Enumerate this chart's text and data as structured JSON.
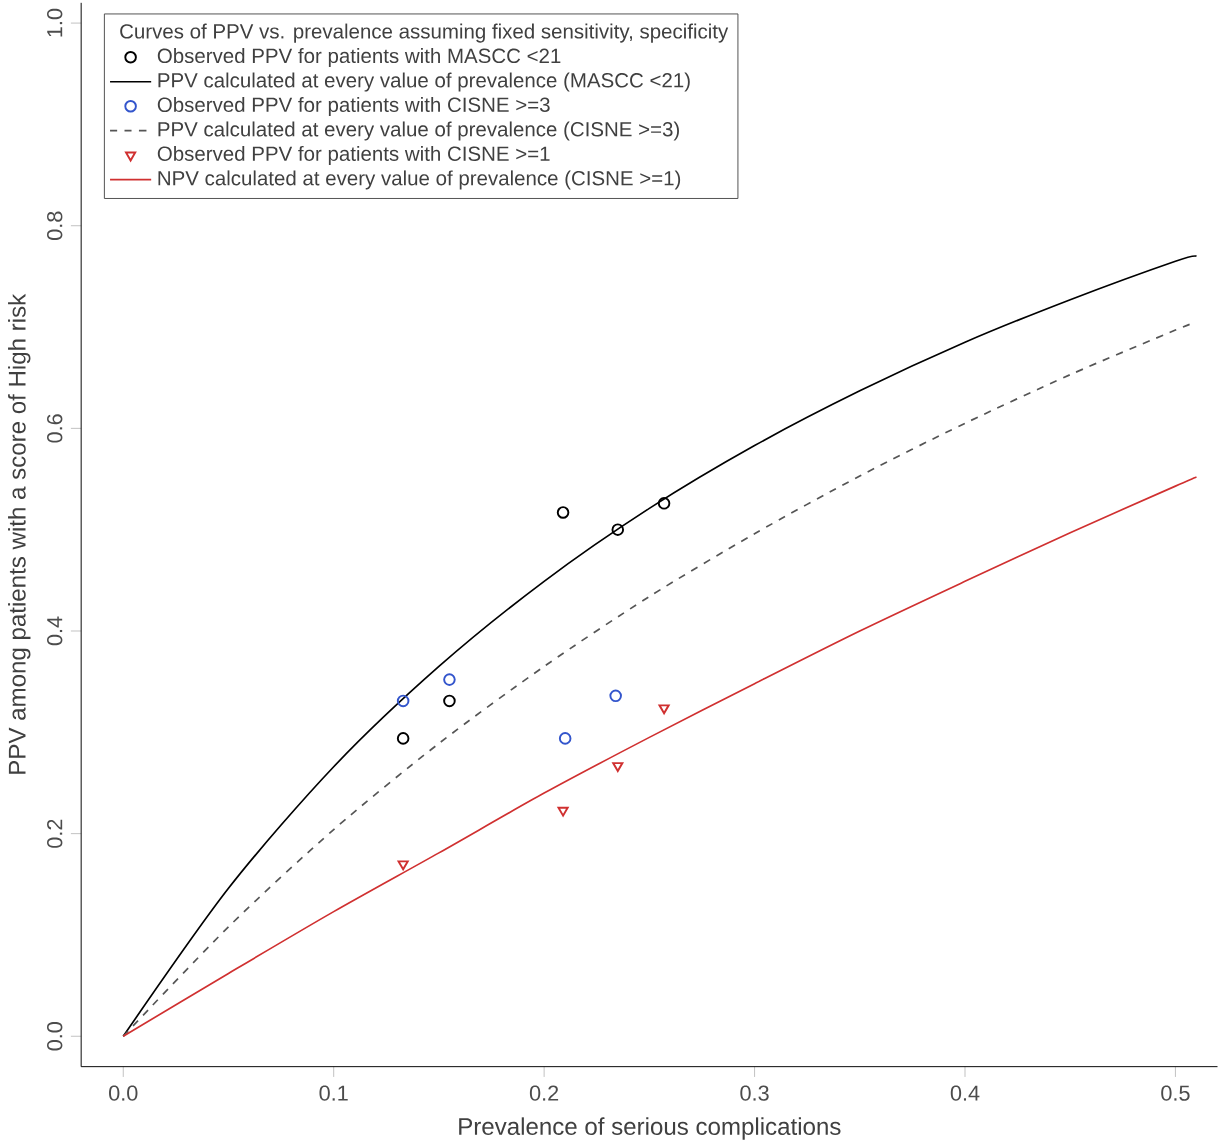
{
  "chart_data": {
    "type": "scatter",
    "xlabel": "Prevalence of serious complications",
    "ylabel": "PPV among patients with a score of High risk",
    "legend_title": "Curves of PPV vs. prevalence assuming fixed sensitivity, specificity",
    "legend": "top left",
    "xlim": [
      -0.02,
      0.52
    ],
    "ylim": [
      -0.03,
      1.02
    ],
    "xticks": [
      {
        "value": 0,
        "label": "0.0"
      },
      0.1,
      0.2,
      0.3,
      0.4,
      0.5
    ],
    "yticks": [
      {
        "value": 0,
        "label": "0.0"
      },
      0.2,
      0.4,
      0.6,
      0.8,
      {
        "value": 1,
        "label": "1.0"
      }
    ],
    "series": [
      {
        "name": "Observed PPV for patients with MASCC <21",
        "color": "#000000",
        "marker": "circle",
        "x": [
          0.133,
          0.155,
          0.209,
          0.235,
          0.257
        ],
        "values": [
          0.294,
          0.331,
          0.517,
          0.5,
          0.526
        ]
      },
      {
        "name": "PPV calculated at every value of prevalence (MASCC <21)",
        "type": "line",
        "color": "#000000",
        "line_style": "solid",
        "x": [
          0,
          0.05,
          0.1,
          0.15,
          0.2,
          0.25,
          0.3,
          0.35,
          0.4,
          0.45,
          0.5,
          0.51
        ],
        "values": [
          0,
          0.146,
          0.266,
          0.365,
          0.449,
          0.521,
          0.583,
          0.637,
          0.685,
          0.727,
          0.765,
          0.77
        ]
      },
      {
        "name": "Observed PPV for patients with CISNE >=3",
        "color": "#3355cc",
        "marker": "circle",
        "x": [
          0.133,
          0.155,
          0.21,
          0.234
        ],
        "values": [
          0.331,
          0.352,
          0.294,
          0.336
        ]
      },
      {
        "name": "PPV calculated at every value of prevalence (CISNE >=3)",
        "type": "line",
        "color": "#555555",
        "line_style": "dashed",
        "x": [
          0,
          0.05,
          0.1,
          0.15,
          0.2,
          0.25,
          0.3,
          0.35,
          0.4,
          0.45,
          0.5,
          0.51
        ],
        "values": [
          0,
          0.108,
          0.204,
          0.289,
          0.365,
          0.434,
          0.496,
          0.553,
          0.605,
          0.653,
          0.697,
          0.705
        ]
      },
      {
        "name": "Observed PPV for patients with CISNE >=1",
        "color": "#d03030",
        "marker": "triangle",
        "x": [
          0.133,
          0.209,
          0.235,
          0.257
        ],
        "values": [
          0.17,
          0.223,
          0.267,
          0.324
        ]
      },
      {
        "name": "NPV calculated at every value of prevalence (CISNE >=1)",
        "type": "line",
        "color": "#d03030",
        "line_style": "solid",
        "x": [
          0,
          0.05,
          0.1,
          0.15,
          0.2,
          0.25,
          0.3,
          0.35,
          0.4,
          0.45,
          0.5,
          0.51
        ],
        "values": [
          0,
          0.062,
          0.123,
          0.181,
          0.24,
          0.295,
          0.348,
          0.4,
          0.449,
          0.497,
          0.543,
          0.552
        ]
      }
    ]
  }
}
